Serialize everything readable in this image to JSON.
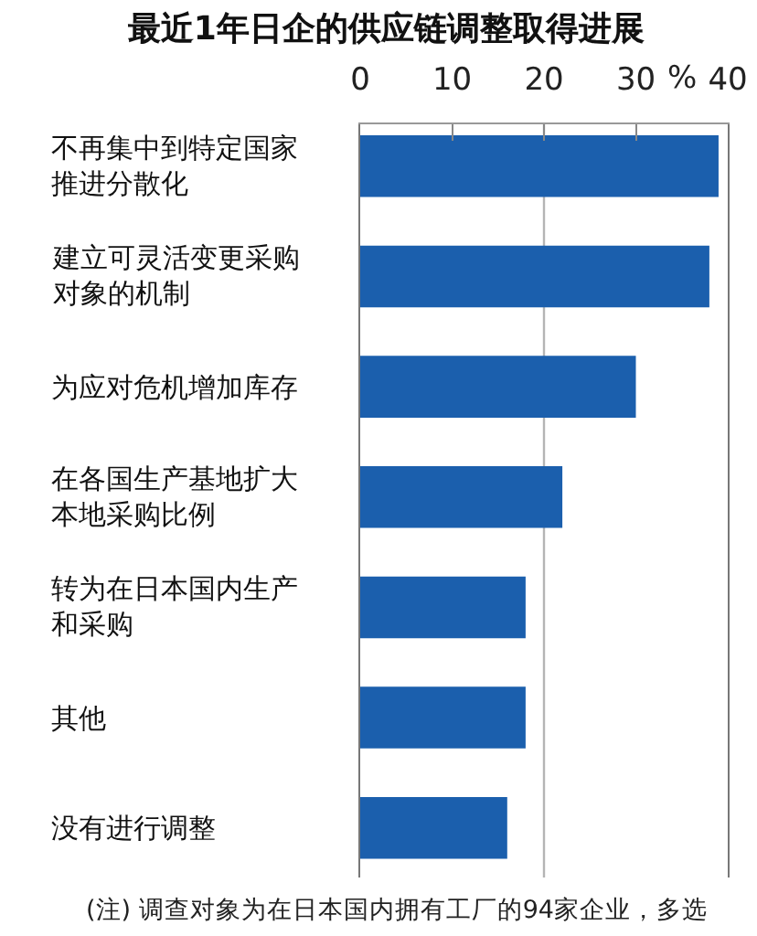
{
  "chart_data": {
    "type": "bar",
    "orientation": "horizontal",
    "title": "最近1年日企的供应链调整取得进展",
    "xlabel": "%",
    "categories": [
      "不再集中到特定国家推进分散化",
      "建立可灵活变更采购对象的机制",
      "为应对危机增加库存",
      "在各国生产基地扩大本地采购比例",
      "转为在日本国内生产和采购",
      "其他",
      "没有进行调整"
    ],
    "values": [
      39,
      38,
      30,
      22,
      18,
      18,
      16
    ],
    "color": "#1b5fad",
    "xlim": [
      0,
      40
    ],
    "xticks": [
      0,
      10,
      20,
      30,
      40
    ],
    "ref_lines": [
      {
        "axis": "x",
        "value": 20,
        "color": "#b4b4b4"
      }
    ],
    "annotations": [
      "(注) 调查对象为在日本国内拥有工厂的94家企业，多选"
    ],
    "grid": false
  }
}
